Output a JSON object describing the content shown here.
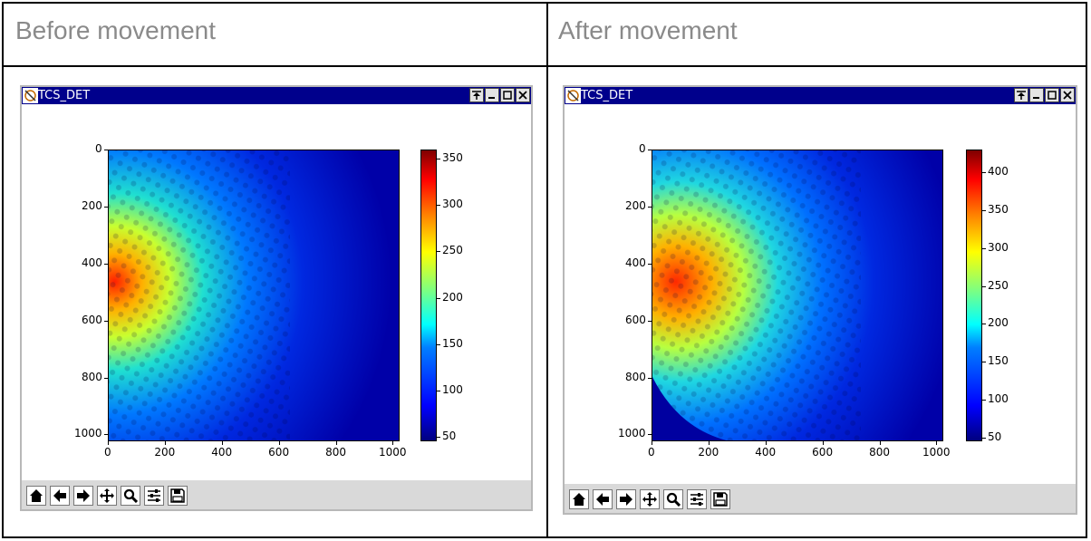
{
  "headers": {
    "left": "Before movement",
    "right": "After movement"
  },
  "panels": [
    {
      "window_title": "TCS_DET",
      "chart_data": {
        "type": "heatmap",
        "x_ticks": [
          0,
          200,
          400,
          600,
          800,
          1000
        ],
        "y_ticks": [
          0,
          200,
          400,
          600,
          800,
          1000
        ],
        "xlim": [
          0,
          1024
        ],
        "ylim": [
          1024,
          0
        ],
        "colorbar": {
          "ticks": [
            50,
            100,
            150,
            200,
            250,
            300,
            350
          ],
          "range": [
            45,
            360
          ],
          "colormap": "jet"
        },
        "hot_region": {
          "x_center": 40,
          "y_center": 450,
          "peak": 340
        }
      }
    },
    {
      "window_title": "TCS_DET",
      "chart_data": {
        "type": "heatmap",
        "x_ticks": [
          0,
          200,
          400,
          600,
          800,
          1000
        ],
        "y_ticks": [
          0,
          200,
          400,
          600,
          800,
          1000
        ],
        "xlim": [
          0,
          1024
        ],
        "ylim": [
          1024,
          0
        ],
        "colorbar": {
          "ticks": [
            50,
            100,
            150,
            200,
            250,
            300,
            350,
            400
          ],
          "range": [
            45,
            430
          ],
          "colormap": "jet"
        },
        "hot_region": {
          "x_center": 120,
          "y_center": 480,
          "peak": 420
        }
      }
    }
  ],
  "toolbar_icons": [
    "home-icon",
    "back-arrow-icon",
    "forward-arrow-icon",
    "pan-move-icon",
    "zoom-magnifier-icon",
    "configure-subplots-icon",
    "save-disk-icon"
  ],
  "window_buttons": [
    "pin-icon",
    "minimize-icon",
    "maximize-icon",
    "close-icon"
  ]
}
